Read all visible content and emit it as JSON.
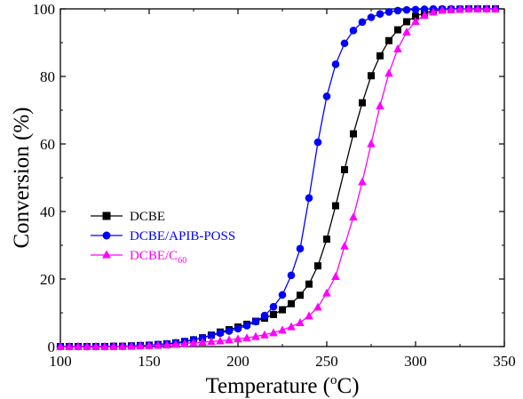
{
  "chart_data": {
    "type": "line",
    "xlabel": "Temperature (",
    "xlabel_sup": "o",
    "xlabel_tail": "C)",
    "ylabel": "Conversion (%)",
    "xlim": [
      100,
      350
    ],
    "ylim": [
      0,
      100
    ],
    "x_ticks": [
      100,
      150,
      200,
      250,
      300,
      350
    ],
    "y_ticks": [
      0,
      20,
      40,
      60,
      80,
      100
    ],
    "grid": false,
    "legend_position": "center-left",
    "x": [
      100,
      105,
      110,
      115,
      120,
      125,
      130,
      135,
      140,
      145,
      150,
      155,
      160,
      165,
      170,
      175,
      180,
      185,
      190,
      195,
      200,
      205,
      210,
      215,
      220,
      225,
      230,
      235,
      240,
      245,
      250,
      255,
      260,
      265,
      270,
      275,
      280,
      285,
      290,
      295,
      300,
      305,
      310,
      315,
      320,
      325,
      330,
      335,
      340,
      345
    ],
    "series": [
      {
        "name": "DCBE",
        "color": "#000000",
        "marker": "square",
        "values": [
          0,
          0,
          0,
          0,
          0,
          0,
          0.1,
          0.1,
          0.2,
          0.3,
          0.4,
          0.6,
          0.8,
          1.1,
          1.5,
          2,
          2.6,
          3.4,
          4.3,
          5,
          5.8,
          6.6,
          7.5,
          8.4,
          9.5,
          10.9,
          12.7,
          15.2,
          18.5,
          23.9,
          31.8,
          41.7,
          52.4,
          63,
          72.2,
          80.2,
          86.1,
          90.6,
          93.8,
          96.2,
          97.8,
          98.8,
          99.4,
          99.7,
          99.8,
          99.9,
          100,
          100,
          100,
          100
        ]
      },
      {
        "name": "DCBE/APIB-POSS",
        "color": "#0000ff",
        "marker": "circle",
        "values": [
          0,
          0,
          0,
          0,
          0,
          0,
          0.1,
          0.1,
          0.2,
          0.3,
          0.4,
          0.6,
          0.8,
          1.1,
          1.5,
          2,
          2.6,
          3.3,
          4,
          4.6,
          5.3,
          6.2,
          7.4,
          9.2,
          11.8,
          15.3,
          21.1,
          29,
          44,
          60.5,
          74.1,
          83.6,
          89.8,
          93.6,
          96.1,
          97.5,
          98.5,
          99.1,
          99.5,
          99.7,
          99.8,
          99.9,
          100,
          100,
          100,
          100,
          100,
          100,
          100,
          100
        ]
      },
      {
        "name": "DCBE/C",
        "name_sub": "60",
        "color": "#ff00ff",
        "marker": "triangle",
        "values": [
          0,
          0,
          0,
          0,
          0,
          0,
          0,
          0.1,
          0.1,
          0.2,
          0.3,
          0.4,
          0.5,
          0.7,
          0.9,
          1.1,
          1.3,
          1.5,
          1.7,
          2,
          2.3,
          2.6,
          3,
          3.5,
          4.1,
          4.9,
          5.9,
          7.1,
          9.1,
          11.7,
          15.9,
          20.8,
          29.8,
          38.4,
          48.8,
          60.1,
          71.3,
          81,
          88.2,
          93.2,
          96.3,
          98.1,
          99.1,
          99.6,
          99.8,
          99.9,
          100,
          100,
          100,
          100
        ]
      }
    ]
  }
}
